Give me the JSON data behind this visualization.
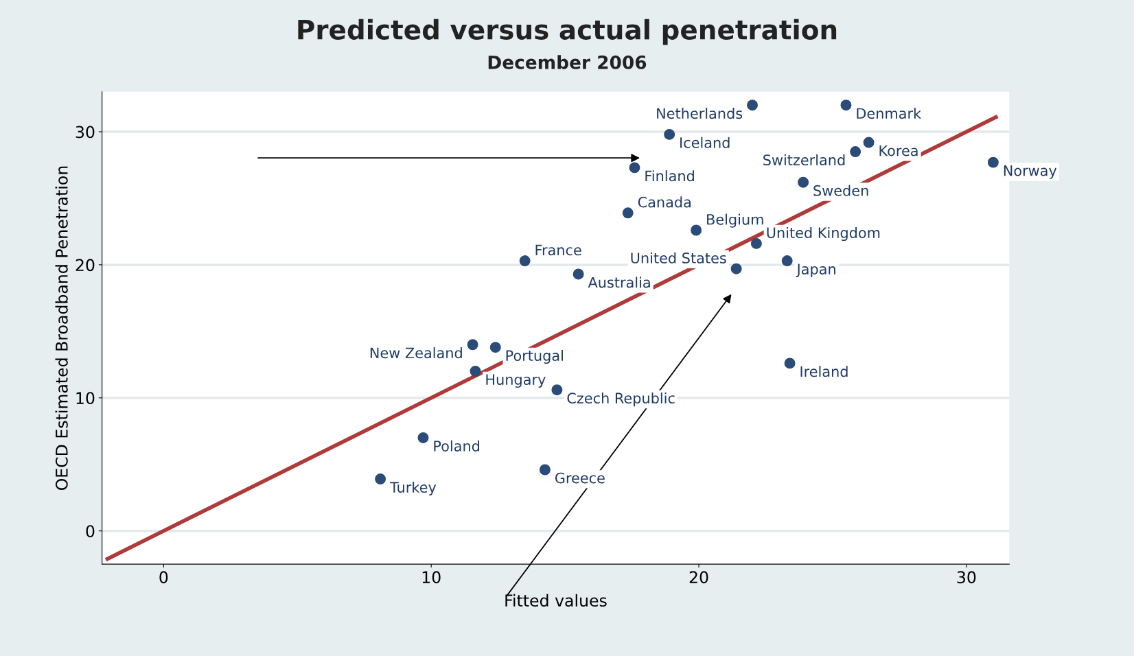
{
  "chart_data": {
    "type": "scatter",
    "title": "Predicted versus actual penetration",
    "subtitle": "December 2006",
    "xlabel": "Fitted values",
    "ylabel": "OECD Estimated Broadband Penetration",
    "xlim": [
      -2.3,
      31.6
    ],
    "ylim": [
      -2.5,
      33
    ],
    "xticks": [
      0,
      10,
      20,
      30
    ],
    "yticks": [
      0,
      10,
      20,
      30
    ],
    "grid": "y",
    "legend": false,
    "series": [
      {
        "marker": "circle",
        "color": "#2b4b78",
        "x": [
          22.0,
          25.5,
          18.9,
          26.35,
          25.85,
          31.0,
          17.6,
          23.9,
          17.35,
          19.9,
          22.15,
          13.5,
          23.3,
          15.5,
          21.4,
          11.55,
          12.4,
          11.65,
          23.4,
          14.7,
          9.7,
          14.25,
          8.1
        ],
        "values": [
          32.0,
          32.0,
          29.8,
          29.2,
          28.5,
          27.7,
          27.3,
          26.2,
          23.9,
          22.6,
          21.6,
          20.3,
          20.3,
          19.3,
          19.7,
          14.0,
          13.8,
          12.0,
          12.6,
          10.6,
          7.0,
          4.6,
          3.9
        ],
        "value_labels": [
          "Netherlands",
          "Denmark",
          "Iceland",
          "Korea",
          "Switzerland",
          "Norway",
          "Finland",
          "Sweden",
          "Canada",
          "Belgium",
          "United Kingdom",
          "France",
          "Japan",
          "Australia",
          "United States",
          "New Zealand",
          "Portugal",
          "Hungary",
          "Ireland",
          "Czech Republic",
          "Poland",
          "Greece",
          "Turkey"
        ]
      },
      {
        "type": "line",
        "color": "#b03a3a",
        "x": [
          -2.1,
          31.1
        ],
        "values": [
          -2.1,
          31.1
        ]
      }
    ]
  }
}
